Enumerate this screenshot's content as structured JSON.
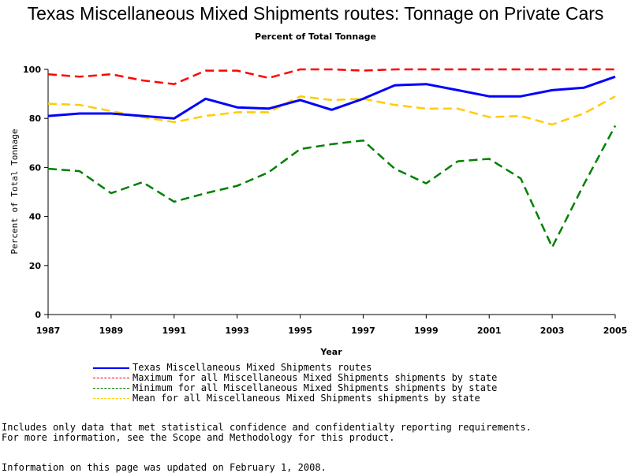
{
  "chart_data": {
    "type": "line",
    "title": "Texas Miscellaneous Mixed Shipments routes: Tonnage on Private Cars",
    "subtitle": "Percent of Total Tonnage",
    "xlabel": "Year",
    "ylabel": "Percent of Total Tonnage",
    "xlim": [
      1987,
      2005
    ],
    "ylim": [
      0,
      100
    ],
    "xticks": [
      "1987",
      "1989",
      "1991",
      "1993",
      "1995",
      "1997",
      "1999",
      "2001",
      "2003",
      "2005"
    ],
    "yticks": [
      "0",
      "20",
      "40",
      "60",
      "80",
      "100"
    ],
    "x": [
      1987,
      1988,
      1989,
      1990,
      1991,
      1992,
      1993,
      1994,
      1995,
      1996,
      1997,
      1998,
      1999,
      2000,
      2001,
      2002,
      2003,
      2004,
      2005
    ],
    "series": [
      {
        "name": "Texas Miscellaneous Mixed Shipments routes",
        "color": "#0000ff",
        "style": "solid",
        "values": [
          81,
          82,
          82,
          81,
          80,
          88,
          84.5,
          84,
          87.5,
          83.5,
          88,
          93.5,
          94,
          91.5,
          89,
          89,
          91.5,
          92.5,
          97
        ]
      },
      {
        "name": "Maximum for all Miscellaneous Mixed Shipments shipments by state",
        "color": "#ff0000",
        "style": "dashed",
        "values": [
          98,
          97,
          98,
          95.5,
          94,
          99.5,
          99.5,
          96.5,
          100,
          100,
          99.5,
          100,
          100,
          100,
          100,
          100,
          100,
          100,
          100
        ]
      },
      {
        "name": "Minimum for all Miscellaneous Mixed Shipments shipments by state",
        "color": "#008000",
        "style": "dashed",
        "values": [
          59.5,
          58.5,
          49.5,
          54,
          46,
          49.5,
          52.5,
          58,
          67.5,
          69.5,
          71,
          59.5,
          53.5,
          62.5,
          63.5,
          55.5,
          27.5,
          53,
          77
        ]
      },
      {
        "name": "Mean for all Miscellaneous Mixed Shipments shipments by state",
        "color": "#ffcc00",
        "style": "dashed",
        "values": [
          86,
          85.5,
          83,
          80.5,
          78.5,
          81,
          82.5,
          82.5,
          89,
          87.5,
          88,
          85.5,
          84,
          84,
          80.5,
          81,
          77.5,
          82,
          89
        ]
      }
    ],
    "legend_position": "bottom"
  },
  "notes": {
    "line1": "Includes only data that met statistical confidence and confidentialty reporting requirements.",
    "line2": "For more information, see the Scope and Methodology for this product.",
    "updated": "Information on this page was updated on February 1, 2008."
  }
}
